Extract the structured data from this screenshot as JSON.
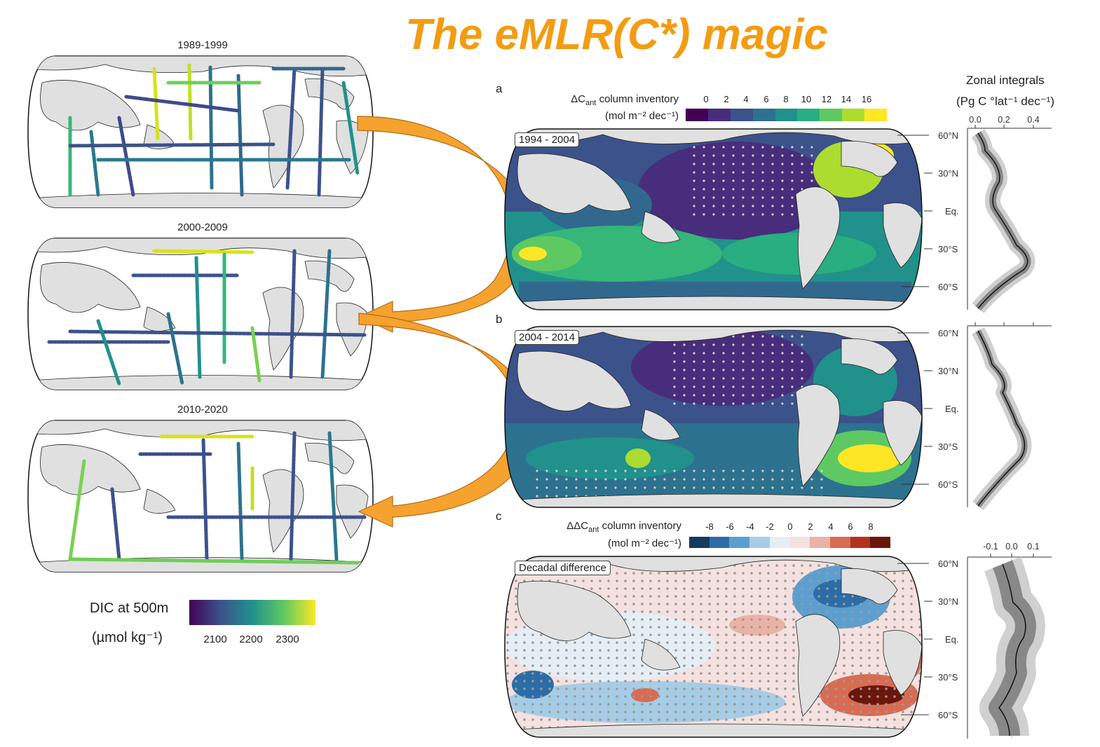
{
  "title": "The eMLR(C*) magic",
  "left_maps": [
    {
      "period": "1989-1999"
    },
    {
      "period": "2000-2009"
    },
    {
      "period": "2010-2020"
    }
  ],
  "dic_colorbar": {
    "title": "DIC at 500m",
    "unit": "(µmol kg⁻¹)",
    "ticks": [
      "2100",
      "2200",
      "2300"
    ],
    "colors": [
      "#440154",
      "#3b528b",
      "#21918c",
      "#5ec962",
      "#fde725"
    ]
  },
  "panel_letters": [
    "a",
    "b",
    "c"
  ],
  "cant_colorbar": {
    "label_line1": "ΔC",
    "label_sub": "ant",
    "label_rest": " column inventory",
    "unit": "(mol m⁻² dec⁻¹)",
    "ticks": [
      "0",
      "2",
      "4",
      "6",
      "8",
      "10",
      "12",
      "14",
      "16"
    ],
    "colors": [
      "#440154",
      "#472d7b",
      "#3b528b",
      "#2c728e",
      "#21918c",
      "#28ae80",
      "#5ec962",
      "#addc30",
      "#fde725"
    ]
  },
  "dcant_colorbar": {
    "label_line1": "ΔΔC",
    "label_sub": "ant",
    "label_rest": " column inventory",
    "unit": "(mol m⁻² dec⁻¹)",
    "ticks": [
      "-8",
      "-6",
      "-4",
      "-2",
      "0",
      "2",
      "4",
      "6",
      "8"
    ],
    "colors": [
      "#16395e",
      "#2c6da8",
      "#5b9fd0",
      "#a7cce5",
      "#e6eef5",
      "#f5e1df",
      "#eab2a5",
      "#d86c52",
      "#b2341f",
      "#6b160c"
    ]
  },
  "panels": [
    {
      "box_label": "1994 - 2004"
    },
    {
      "box_label": "2004 - 2014"
    },
    {
      "box_label": "Decadal difference"
    }
  ],
  "lat_labels": [
    "60°N",
    "30°N",
    "Eq.",
    "30°S",
    "60°S"
  ],
  "zonal": {
    "title": "Zonal integrals",
    "unit": "(Pg C °lat⁻¹ dec⁻¹)",
    "ticks_top": [
      "0.0",
      "0.2",
      "0.4"
    ],
    "ticks_bottom": [
      "-0.1",
      "0.0",
      "0.1"
    ]
  },
  "colors": {
    "title": "#f39c12",
    "arrow_fill": "#f5a22f",
    "arrow_stroke": "#b46a14",
    "land": "#e0e0e0"
  }
}
